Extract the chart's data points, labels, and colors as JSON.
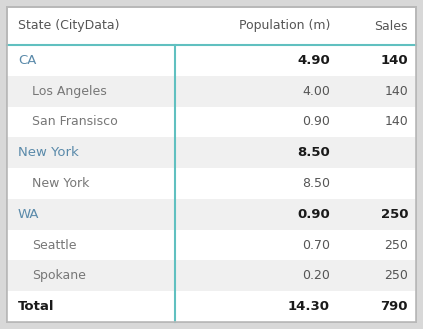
{
  "headers": [
    "State (CityData)",
    "Population (m)",
    "Sales"
  ],
  "rows": [
    {
      "label": "CA",
      "indent": 0,
      "pop": "4.90",
      "sales": "140",
      "bold": true,
      "bg": "#ffffff"
    },
    {
      "label": "Los Angeles",
      "indent": 1,
      "pop": "4.00",
      "sales": "140",
      "bold": false,
      "bg": "#f0f0f0"
    },
    {
      "label": "San Fransisco",
      "indent": 1,
      "pop": "0.90",
      "sales": "140",
      "bold": false,
      "bg": "#ffffff"
    },
    {
      "label": "New York",
      "indent": 0,
      "pop": "8.50",
      "sales": "",
      "bold": true,
      "bg": "#f0f0f0"
    },
    {
      "label": "New York",
      "indent": 1,
      "pop": "8.50",
      "sales": "",
      "bold": false,
      "bg": "#ffffff"
    },
    {
      "label": "WA",
      "indent": 0,
      "pop": "0.90",
      "sales": "250",
      "bold": true,
      "bg": "#f0f0f0"
    },
    {
      "label": "Seattle",
      "indent": 1,
      "pop": "0.70",
      "sales": "250",
      "bold": false,
      "bg": "#ffffff"
    },
    {
      "label": "Spokane",
      "indent": 1,
      "pop": "0.20",
      "sales": "250",
      "bold": false,
      "bg": "#f0f0f0"
    },
    {
      "label": "Total",
      "indent": 0,
      "pop": "14.30",
      "sales": "790",
      "bold": true,
      "bg": "#ffffff"
    }
  ],
  "outer_bg": "#d8d8d8",
  "header_text_color": "#555555",
  "state_text_color": "#5a8aaa",
  "city_text_color": "#777777",
  "total_text_color": "#1a1a1a",
  "bold_value_color": "#1a1a1a",
  "normal_value_color": "#555555",
  "divider_color": "#60c0c0",
  "outer_border_color": "#b8b8b8",
  "figsize": [
    4.23,
    3.29
  ],
  "dpi": 100
}
